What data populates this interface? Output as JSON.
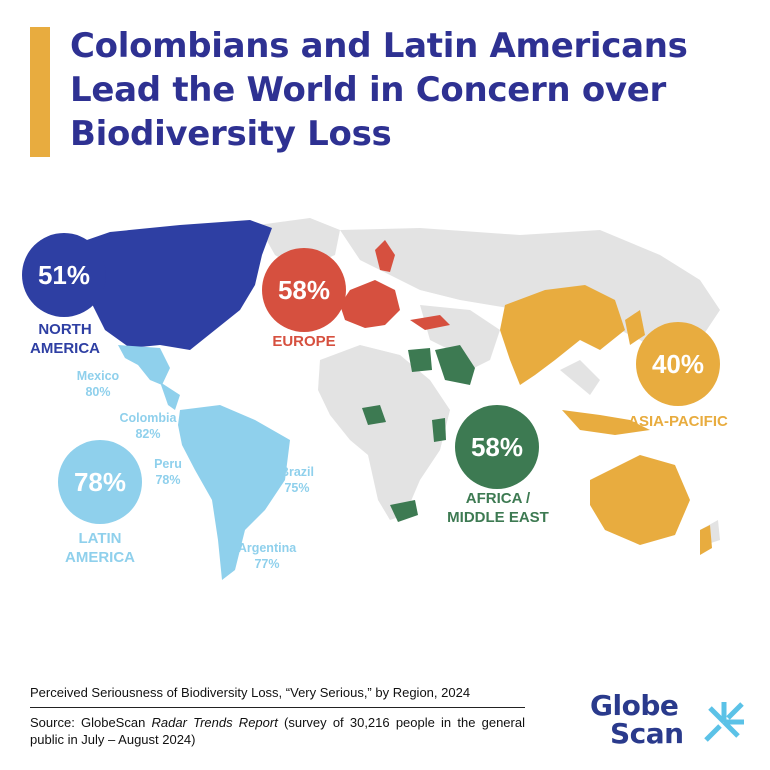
{
  "title": "Colombians and Latin Americans Lead the World in Concern over Biodiversity Loss",
  "colors": {
    "title": "#2e3192",
    "accent": "#e8ac3f",
    "north_america": "#2e3fa3",
    "latin_america": "#8fd0ec",
    "europe": "#d6503f",
    "africa_middle_east": "#3d7a52",
    "asia_pacific": "#e8ac3f",
    "land": "#e3e3e3",
    "logo": "#2a3a8c",
    "logo_rays": "#5bc2e7"
  },
  "regions": {
    "north_america": {
      "value": "51%",
      "label_line1": "NORTH",
      "label_line2": "AMERICA"
    },
    "europe": {
      "value": "58%",
      "label": "EUROPE"
    },
    "latin_america": {
      "value": "78%",
      "label_line1": "LATIN",
      "label_line2": "AMERICA"
    },
    "africa_middle_east": {
      "value": "58%",
      "label_line1": "AFRICA /",
      "label_line2": "MIDDLE EAST"
    },
    "asia_pacific": {
      "value": "40%",
      "label": "ASIA-PACIFIC"
    }
  },
  "countries": {
    "mexico": {
      "name": "Mexico",
      "value": "80%"
    },
    "colombia": {
      "name": "Colombia",
      "value": "82%"
    },
    "peru": {
      "name": "Peru",
      "value": "78%"
    },
    "brazil": {
      "name": "Brazil",
      "value": "75%"
    },
    "argentina": {
      "name": "Argentina",
      "value": "77%"
    }
  },
  "caption": {
    "subtitle": "Perceived Seriousness of Biodiversity Loss, “Very Serious,” by Region, 2024",
    "source_prefix": "Source: GlobeScan ",
    "source_italic": "Radar Trends Report",
    "source_suffix": " (survey of 30,216 people in the general public in July – August 2024)"
  },
  "logo": {
    "line1": "Globe",
    "line2": "Scan"
  }
}
